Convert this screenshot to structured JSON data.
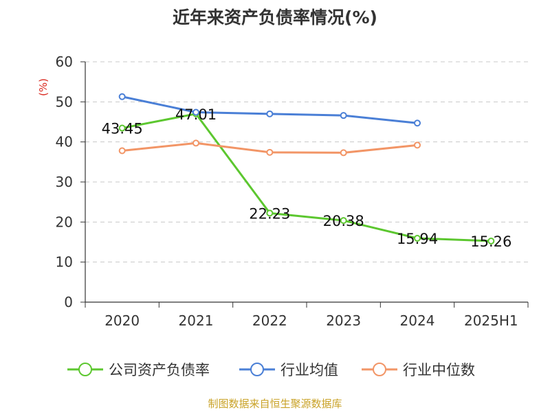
{
  "chart_data": {
    "type": "line",
    "title": "近年来资产负债率情况(%)",
    "ylabel": "(%)",
    "xlabel": "",
    "categories": [
      "2020",
      "2021",
      "2022",
      "2023",
      "2024",
      "2025H1"
    ],
    "ylim": [
      0,
      60
    ],
    "yticks": [
      0,
      10,
      20,
      30,
      40,
      50,
      60
    ],
    "grid": true,
    "legend_position": "bottom",
    "series": [
      {
        "name": "公司资产负债率",
        "color": "#5cc72f",
        "values": [
          43.45,
          47.01,
          22.23,
          20.38,
          15.94,
          15.26
        ],
        "labels": [
          "43.45",
          "47.01",
          "22.23",
          "20.38",
          "15.94",
          "15.26"
        ]
      },
      {
        "name": "行业均值",
        "color": "#4a7fd6",
        "values": [
          51.3,
          47.4,
          47.0,
          46.6,
          44.7,
          null
        ]
      },
      {
        "name": "行业中位数",
        "color": "#f29566",
        "values": [
          37.8,
          39.7,
          37.4,
          37.3,
          39.2,
          null
        ]
      }
    ]
  },
  "source_note": "制图数据来自恒生聚源数据库"
}
